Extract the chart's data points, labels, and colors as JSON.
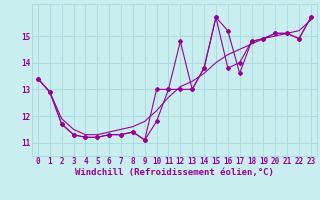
{
  "xlabel": "Windchill (Refroidissement éolien,°C)",
  "bg_color": "#c8eef0",
  "grid_color": "#aad8dc",
  "line_color": "#990099",
  "x_data": [
    0,
    1,
    2,
    3,
    4,
    5,
    6,
    7,
    8,
    9,
    10,
    11,
    12,
    13,
    14,
    15,
    16,
    17,
    18,
    19,
    20,
    21,
    22,
    23
  ],
  "y_line1": [
    13.4,
    12.9,
    11.7,
    11.3,
    11.2,
    11.2,
    11.3,
    11.3,
    11.4,
    11.1,
    13.0,
    13.0,
    14.8,
    13.0,
    13.8,
    15.7,
    13.8,
    14.0,
    14.8,
    14.9,
    15.1,
    15.1,
    14.9,
    15.7
  ],
  "y_line2": [
    13.4,
    12.9,
    11.7,
    11.3,
    11.2,
    11.2,
    11.3,
    11.3,
    11.4,
    11.1,
    11.8,
    13.0,
    13.0,
    13.0,
    13.8,
    15.7,
    15.2,
    13.6,
    14.8,
    14.9,
    15.1,
    15.1,
    14.9,
    15.7
  ],
  "y_trend": [
    13.4,
    12.9,
    11.9,
    11.5,
    11.3,
    11.3,
    11.4,
    11.5,
    11.6,
    11.8,
    12.2,
    12.7,
    13.1,
    13.3,
    13.6,
    14.0,
    14.3,
    14.5,
    14.7,
    14.9,
    15.0,
    15.1,
    15.2,
    15.6
  ],
  "ylim": [
    10.5,
    16.2
  ],
  "xlim": [
    -0.5,
    23.5
  ],
  "yticks": [
    11,
    12,
    13,
    14,
    15
  ],
  "xticks": [
    0,
    1,
    2,
    3,
    4,
    5,
    6,
    7,
    8,
    9,
    10,
    11,
    12,
    13,
    14,
    15,
    16,
    17,
    18,
    19,
    20,
    21,
    22,
    23
  ],
  "tick_fontsize": 5.5,
  "xlabel_fontsize": 6.5,
  "marker": "D",
  "marker_size": 2.0,
  "linewidth": 0.8
}
